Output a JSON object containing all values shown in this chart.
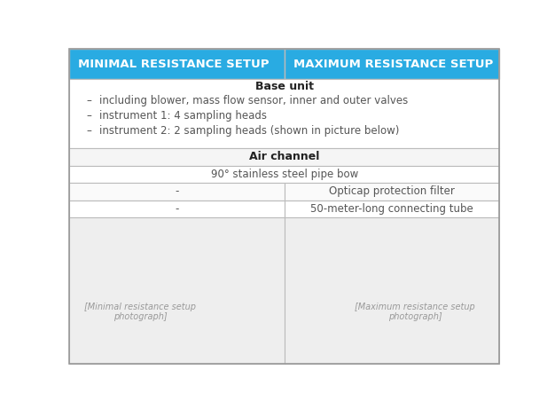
{
  "header_left": "MINIMAL RESISTANCE SETUP",
  "header_right": "MAXIMUM RESISTANCE SETUP",
  "header_bg": "#29ABE2",
  "header_text_color": "#FFFFFF",
  "section1_title": "Base unit",
  "section1_bullets": [
    "including blower, mass flow sensor, inner and outer valves",
    "instrument 1: 4 sampling heads",
    "instrument 2: 2 sampling heads (shown in picture below)"
  ],
  "section2_title": "Air channel",
  "row1_both": "90° stainless steel pipe bow",
  "row2_left": "-",
  "row2_right": "Opticap protection filter",
  "row3_left": "-",
  "row3_right": "50-meter-long connecting tube",
  "bg_color": "#FFFFFF",
  "border_color": "#BBBBBB",
  "text_color_dark": "#555555",
  "text_color_header_section": "#333333",
  "col_split": 0.5,
  "figsize": [
    6.26,
    4.61
  ],
  "dpi": 100
}
